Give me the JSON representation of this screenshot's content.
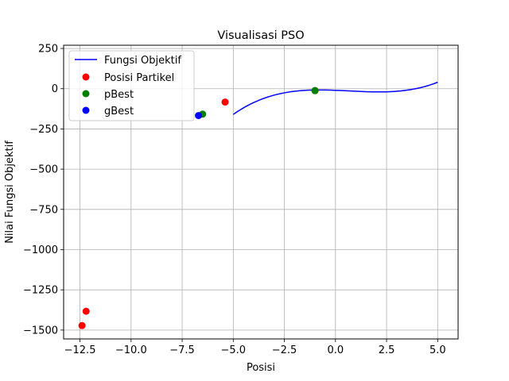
{
  "chart_data": {
    "type": "scatter",
    "title": "Visualisasi PSO",
    "xlabel": "Posisi",
    "ylabel": "Nilai Fungsi Objektif",
    "xlim": [
      -13.3,
      6.0
    ],
    "ylim": [
      -1555,
      270
    ],
    "grid": true,
    "legend_position": "top-left",
    "xticks": [
      -12.5,
      -10.0,
      -7.5,
      -5.0,
      -2.5,
      0.0,
      2.5,
      5.0
    ],
    "xtick_labels": [
      "−12.5",
      "−10.0",
      "−7.5",
      "−5.0",
      "−2.5",
      "0.0",
      "2.5",
      "5.0"
    ],
    "yticks": [
      250,
      0,
      -250,
      -500,
      -750,
      -1000,
      -1250,
      -1500
    ],
    "ytick_labels": [
      "250",
      "0",
      "−250",
      "−500",
      "−750",
      "−1000",
      "−1250",
      "−1500"
    ],
    "series": [
      {
        "name": "Fungsi Objektif",
        "kind": "line",
        "color": "#0000ff",
        "function": "x^3 - 2x^2 - 5x - 10",
        "x_range": [
          -5,
          5
        ],
        "samples": 100
      },
      {
        "name": "Posisi Partikel",
        "kind": "scatter",
        "color": "#ff0000",
        "points": [
          [
            -12.4,
            -1472
          ],
          [
            -12.2,
            -1383
          ],
          [
            -5.4,
            -83
          ],
          [
            -1.0,
            -12
          ]
        ]
      },
      {
        "name": "pBest",
        "kind": "scatter",
        "color": "#008000",
        "points": [
          [
            -6.5,
            -158
          ],
          [
            -1.0,
            -12
          ]
        ]
      },
      {
        "name": "gBest",
        "kind": "scatter",
        "color": "#0000ff",
        "points": [
          [
            -6.7,
            -167
          ]
        ]
      }
    ]
  }
}
